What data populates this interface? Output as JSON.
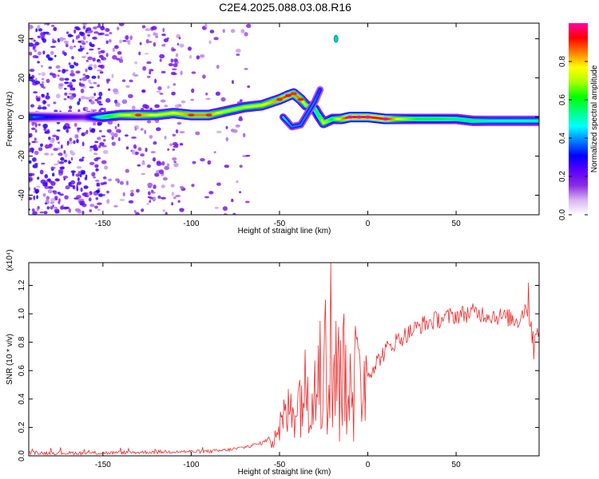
{
  "title": "C2E4.2025.088.03.08.R16",
  "chart_data": [
    {
      "type": "heatmap",
      "xlabel": "Height of straight line (km)",
      "ylabel": "Frequency (Hz)",
      "xlim": [
        -192,
        97
      ],
      "ylim": [
        -50,
        48
      ],
      "xticks": [
        -150,
        -100,
        -50,
        0,
        50
      ],
      "yticks": [
        -40,
        -20,
        0,
        20,
        40
      ],
      "colorbar": {
        "label": "Normalized spectral amplitude",
        "range": [
          0,
          1
        ],
        "ticks": [
          "0.0",
          "0.2",
          "0.4",
          "0.6",
          "0.8"
        ],
        "tick_values": [
          0,
          0.2,
          0.4,
          0.6,
          0.8
        ],
        "colors": [
          "#ffffff",
          "#d9b3f2",
          "#8a2be2",
          "#5a00ff",
          "#0000ff",
          "#0080ff",
          "#00ffff",
          "#00ff80",
          "#00ff00",
          "#aaff00",
          "#ffff00",
          "#ff8000",
          "#ff0000",
          "#ff00a0"
        ]
      },
      "ridge": {
        "x": [
          -192,
          -180,
          -160,
          -150,
          -140,
          -130,
          -120,
          -110,
          -100,
          -90,
          -80,
          -70,
          -60,
          -50,
          -45,
          -42,
          -38,
          -35,
          -30,
          -28,
          -25,
          -20,
          -15,
          -10,
          -5,
          0,
          10,
          20,
          30,
          40,
          50,
          60,
          70,
          80,
          90,
          97
        ],
        "y": [
          0,
          0,
          0,
          0,
          1,
          1,
          1,
          2,
          1,
          1,
          3,
          5,
          6,
          9,
          11,
          12,
          9,
          6,
          4,
          1,
          -3,
          -1,
          -1,
          0,
          0,
          0,
          -1,
          -1,
          -1,
          -1,
          -1,
          -2,
          -2,
          -2,
          -2,
          -2
        ],
        "amplitude": [
          0.4,
          0.3,
          0.2,
          0.55,
          0.7,
          0.85,
          0.75,
          0.75,
          0.85,
          0.85,
          0.7,
          0.7,
          0.75,
          0.85,
          0.9,
          0.85,
          0.85,
          0.7,
          0.6,
          0.55,
          0.75,
          0.6,
          0.8,
          0.95,
          0.95,
          0.95,
          0.95,
          0.7,
          0.6,
          0.6,
          0.55,
          0.55,
          0.5,
          0.5,
          0.5,
          0.5
        ]
      },
      "branch": {
        "x": [
          -48,
          -43,
          -38,
          -34,
          -30,
          -27
        ],
        "y": [
          0,
          -5,
          -4,
          2,
          8,
          14
        ],
        "amplitude": [
          0.55,
          0.45,
          0.45,
          0.45,
          0.45,
          0.4
        ]
      },
      "blob": {
        "x": -18,
        "y": 40,
        "amplitude": 0.4
      }
    },
    {
      "type": "line",
      "xlabel": "Height of straight line (km)",
      "ylabel": "SNR (10 * v/v)",
      "multiplier": "(x10⁴)",
      "xlim": [
        -192,
        97
      ],
      "ylim": [
        0,
        1.36
      ],
      "xticks": [
        -150,
        -100,
        -50,
        0,
        50
      ],
      "yticks": [
        0.0,
        0.2,
        0.4,
        0.6,
        0.8,
        1.0,
        1.2
      ],
      "ytick_labels": [
        "0.0",
        "0.2",
        "0.4",
        "0.6",
        "0.8",
        "1.0",
        "1.2"
      ],
      "color": "#ee2a2a",
      "envelope_x": [
        -192,
        -150,
        -110,
        -90,
        -80,
        -70,
        -60,
        -55,
        -50,
        -45,
        -40,
        -35,
        -30,
        -25,
        -20,
        -15,
        -10,
        -5,
        0,
        5,
        10,
        15,
        20,
        25,
        30,
        40,
        50,
        60,
        70,
        80,
        85,
        90,
        93,
        97
      ],
      "envelope_y": [
        0.02,
        0.02,
        0.03,
        0.03,
        0.04,
        0.06,
        0.09,
        0.13,
        0.2,
        0.3,
        0.4,
        0.47,
        0.52,
        0.58,
        0.62,
        0.6,
        0.58,
        0.55,
        0.58,
        0.66,
        0.74,
        0.8,
        0.84,
        0.88,
        0.92,
        0.96,
        0.99,
        1.01,
        0.99,
        0.97,
        0.95,
        1.06,
        0.85,
        0.9
      ],
      "spikes": [
        {
          "x": -28,
          "y": 0.78
        },
        {
          "x": -27,
          "y": 0.95
        },
        {
          "x": -26,
          "y": 0.2
        },
        {
          "x": -24,
          "y": 1.1
        },
        {
          "x": -23,
          "y": 0.15
        },
        {
          "x": -21,
          "y": 1.36
        },
        {
          "x": -20,
          "y": 0.2
        },
        {
          "x": -18,
          "y": 0.95
        },
        {
          "x": -16,
          "y": 0.1
        },
        {
          "x": -14,
          "y": 0.9
        },
        {
          "x": -12,
          "y": 0.15
        },
        {
          "x": -10,
          "y": 0.72
        },
        {
          "x": -8,
          "y": 0.1
        },
        {
          "x": -5,
          "y": 0.75
        },
        {
          "x": -3,
          "y": 0.35
        },
        {
          "x": 91,
          "y": 1.22
        },
        {
          "x": 94,
          "y": 0.68
        }
      ]
    }
  ]
}
